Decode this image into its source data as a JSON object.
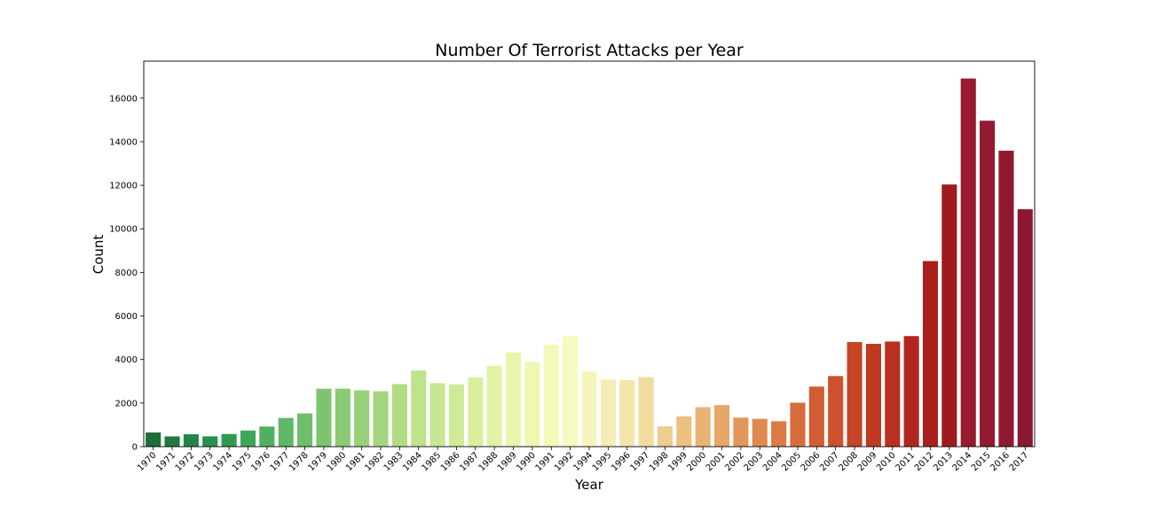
{
  "chart_data": {
    "type": "bar",
    "title": "Number Of Terrorist Attacks per Year",
    "xlabel": "Year",
    "ylabel": "Count",
    "ylim": [
      0,
      17700
    ],
    "yticks": [
      0,
      2000,
      4000,
      6000,
      8000,
      10000,
      12000,
      14000,
      16000
    ],
    "grid": false,
    "legend": "none",
    "palette": "RdYlGn_r",
    "categories": [
      "1970",
      "1971",
      "1972",
      "1973",
      "1974",
      "1975",
      "1976",
      "1977",
      "1978",
      "1979",
      "1980",
      "1981",
      "1982",
      "1983",
      "1984",
      "1985",
      "1986",
      "1987",
      "1988",
      "1989",
      "1990",
      "1991",
      "1992",
      "1994",
      "1995",
      "1996",
      "1997",
      "1998",
      "1999",
      "2000",
      "2001",
      "2002",
      "2003",
      "2004",
      "2005",
      "2006",
      "2007",
      "2008",
      "2009",
      "2010",
      "2011",
      "2012",
      "2013",
      "2014",
      "2015",
      "2016",
      "2017"
    ],
    "values": [
      651,
      471,
      568,
      473,
      581,
      740,
      923,
      1319,
      1526,
      2662,
      2662,
      2586,
      2544,
      2870,
      3495,
      2915,
      2860,
      3183,
      3721,
      4324,
      3887,
      4683,
      5071,
      3456,
      3081,
      3058,
      3197,
      934,
      1395,
      1814,
      1906,
      1333,
      1278,
      1166,
      2017,
      2758,
      3242,
      4805,
      4721,
      4826,
      5076,
      8522,
      12036,
      16903,
      14965,
      13587,
      10900
    ],
    "colors": [
      "#1b6d3a",
      "#1f7a3f",
      "#238545",
      "#28904c",
      "#2e9a52",
      "#3da65a",
      "#4fb060",
      "#5eb866",
      "#6ebe6a",
      "#7cc56e",
      "#8acb73",
      "#97d078",
      "#a4d67e",
      "#b1dc84",
      "#bde38b",
      "#c7e792",
      "#d0eb98",
      "#d9ef9e",
      "#e1f2a5",
      "#e9f5ab",
      "#eff7b2",
      "#f4f8b8",
      "#f7f9bd",
      "#f7f4bd",
      "#f5edb5",
      "#f4e6aa",
      "#f1dc9d",
      "#eecd8e",
      "#ecc080",
      "#e9b373",
      "#e7a566",
      "#e4975a",
      "#e0894f",
      "#dc7b45",
      "#d76c3b",
      "#d15e33",
      "#cc512c",
      "#c64526",
      "#c03a22",
      "#b9301f",
      "#b1271d",
      "#a8201c",
      "#9f1a1c",
      "#971a2e",
      "#931a30",
      "#8f1931",
      "#8b1832"
    ]
  }
}
